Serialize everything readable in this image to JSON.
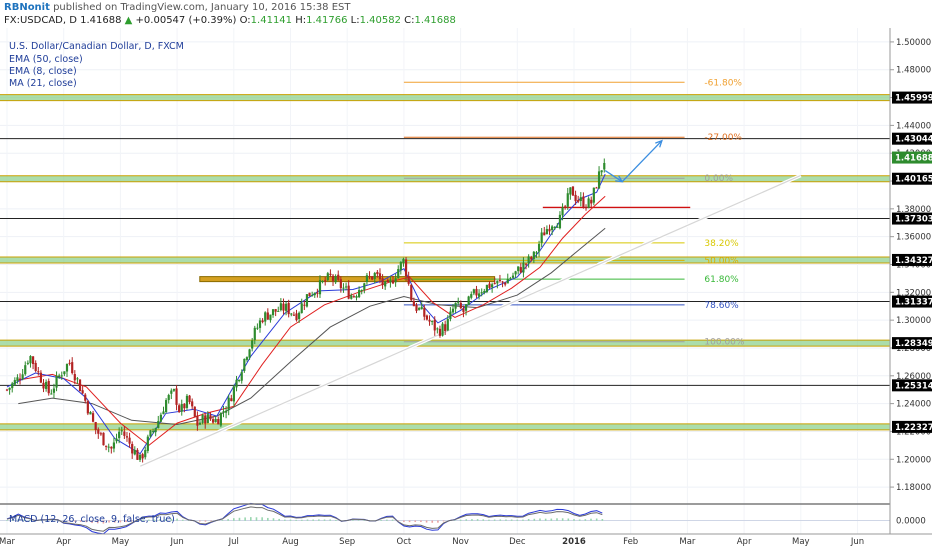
{
  "header": {
    "author": "RBNonit",
    "published_text": "published on TradingView.com, January 10, 2016 15:38 EST",
    "symbol": "FX:USDCAD, D",
    "last": "1.41688",
    "change_arrow": "▲",
    "change": "+0.00547 (+0.39%)",
    "o_label": "O:",
    "o_value": "1.41141",
    "h_label": "H:",
    "h_value": "1.41766",
    "l_label": "L:",
    "l_value": "1.40582",
    "c_label": "C:",
    "c_value": "1.41688"
  },
  "legend": {
    "title": "U.S. Dollar/Canadian Dollar, D, FXCM",
    "ema50": "EMA (50, close)",
    "ema8": "EMA (8, close)",
    "ma21": "MA (21, close)",
    "macd": "MACD (12, 26, close, 9, false, true)"
  },
  "colors": {
    "candle_up": "#2e8b2e",
    "candle_down": "#b22222",
    "ema8": "#2a3ad8",
    "ma21": "#e02020",
    "ema50": "#555555",
    "support_zone": "#8fd18f",
    "support_border": "#c8a000",
    "trendline": "#ffffff",
    "arrow": "#3b8ee0"
  },
  "chart_data": {
    "type": "candlestick",
    "symbol": "FX:USDCAD",
    "timeframe": "D",
    "x_axis": {
      "ticks": [
        "Mar",
        "Apr",
        "May",
        "Jun",
        "Jul",
        "Aug",
        "Sep",
        "Oct",
        "Nov",
        "Dec",
        "2016",
        "Feb",
        "Mar",
        "Apr",
        "May",
        "Jun"
      ],
      "tick_months": [
        0,
        1,
        2,
        3,
        4,
        5,
        6,
        7,
        8,
        9,
        10,
        11,
        12,
        13,
        14,
        15
      ]
    },
    "y_axis": {
      "range": [
        1.17,
        1.51
      ],
      "ticks": [
        "1.18000",
        "1.20000",
        "1.22000",
        "1.24000",
        "1.26000",
        "1.28000",
        "1.30000",
        "1.32000",
        "1.34000",
        "1.36000",
        "1.38000",
        "1.40000",
        "1.42000",
        "1.44000",
        "1.46000",
        "1.48000",
        "1.50000"
      ],
      "tick_values": [
        1.18,
        1.2,
        1.22,
        1.24,
        1.26,
        1.28,
        1.3,
        1.32,
        1.34,
        1.36,
        1.38,
        1.4,
        1.42,
        1.44,
        1.46,
        1.48,
        1.5
      ]
    },
    "key_levels": [
      {
        "label": "1.45999",
        "value": 1.45999,
        "zone": true
      },
      {
        "label": "1.43044",
        "value": 1.43044,
        "zone": false
      },
      {
        "label": "1.41688",
        "value": 1.41688,
        "current": true
      },
      {
        "label": "1.40165",
        "value": 1.40165,
        "zone": true
      },
      {
        "label": "1.37303",
        "value": 1.37303,
        "zone": false
      },
      {
        "label": "1.34327",
        "value": 1.34327,
        "zone": true
      },
      {
        "label": "1.31337",
        "value": 1.31337,
        "zone": false
      },
      {
        "label": "1.28349",
        "value": 1.28349,
        "zone": true
      },
      {
        "label": "1.25314",
        "value": 1.25314,
        "zone": false
      },
      {
        "label": "1.22327",
        "value": 1.22327,
        "zone": true
      }
    ],
    "extra_zone": {
      "value": 1.3295,
      "x_start_month": 3.4,
      "x_end_month": 8.6
    },
    "fibonacci": [
      {
        "label": "-61.80%",
        "value": 1.471,
        "color": "#f0a030"
      },
      {
        "label": "-27.00%",
        "value": 1.4315,
        "color": "#e07020"
      },
      {
        "label": "0.00%",
        "value": 1.402,
        "color": "#a0a0a0"
      },
      {
        "label": "38.20%",
        "value": 1.3555,
        "color": "#d8c800"
      },
      {
        "label": "50.00%",
        "value": 1.343,
        "color": "#d8b000"
      },
      {
        "label": "61.80%",
        "value": 1.3295,
        "color": "#38b838"
      },
      {
        "label": "78.60%",
        "value": 1.311,
        "color": "#3050c0"
      },
      {
        "label": "100.00%",
        "value": 1.2845,
        "color": "#a0a0a0"
      }
    ],
    "fib_x_start_month": 7.0,
    "fib_x_end_month": 11.95,
    "fib_label_month": 12.3,
    "red_level": {
      "value": 1.381,
      "x_start_month": 9.45,
      "x_end_month": 12.05
    },
    "trendline": {
      "start": [
        2.35,
        1.195
      ],
      "end": [
        14.0,
        1.404
      ]
    },
    "projection_arrows": [
      {
        "from": [
          10.55,
          1.4075
        ],
        "to": [
          10.85,
          1.3995
        ]
      },
      {
        "from": [
          10.85,
          1.3995
        ],
        "to": [
          11.55,
          1.429
        ]
      }
    ],
    "price_path": [
      [
        0.0,
        1.25
      ],
      [
        0.2,
        1.258
      ],
      [
        0.4,
        1.275
      ],
      [
        0.55,
        1.262
      ],
      [
        0.75,
        1.247
      ],
      [
        0.95,
        1.262
      ],
      [
        1.1,
        1.27
      ],
      [
        1.25,
        1.256
      ],
      [
        1.4,
        1.24
      ],
      [
        1.55,
        1.222
      ],
      [
        1.7,
        1.214
      ],
      [
        1.85,
        1.207
      ],
      [
        2.0,
        1.222
      ],
      [
        2.15,
        1.212
      ],
      [
        2.35,
        1.199
      ],
      [
        2.5,
        1.215
      ],
      [
        2.65,
        1.226
      ],
      [
        2.8,
        1.242
      ],
      [
        2.95,
        1.248
      ],
      [
        3.05,
        1.234
      ],
      [
        3.2,
        1.243
      ],
      [
        3.35,
        1.225
      ],
      [
        3.5,
        1.23
      ],
      [
        3.7,
        1.228
      ],
      [
        3.9,
        1.24
      ],
      [
        4.1,
        1.262
      ],
      [
        4.3,
        1.285
      ],
      [
        4.5,
        1.302
      ],
      [
        4.7,
        1.306
      ],
      [
        4.9,
        1.309
      ],
      [
        5.1,
        1.304
      ],
      [
        5.3,
        1.318
      ],
      [
        5.5,
        1.324
      ],
      [
        5.7,
        1.331
      ],
      [
        5.9,
        1.324
      ],
      [
        6.1,
        1.317
      ],
      [
        6.3,
        1.328
      ],
      [
        6.5,
        1.333
      ],
      [
        6.7,
        1.322
      ],
      [
        6.9,
        1.337
      ],
      [
        7.0,
        1.343
      ],
      [
        7.15,
        1.312
      ],
      [
        7.3,
        1.306
      ],
      [
        7.45,
        1.299
      ],
      [
        7.6,
        1.292
      ],
      [
        7.75,
        1.296
      ],
      [
        7.9,
        1.311
      ],
      [
        8.05,
        1.306
      ],
      [
        8.2,
        1.317
      ],
      [
        8.35,
        1.322
      ],
      [
        8.55,
        1.326
      ],
      [
        8.75,
        1.327
      ],
      [
        8.95,
        1.333
      ],
      [
        9.1,
        1.339
      ],
      [
        9.3,
        1.346
      ],
      [
        9.45,
        1.362
      ],
      [
        9.6,
        1.37
      ],
      [
        9.75,
        1.372
      ],
      [
        9.85,
        1.382
      ],
      [
        9.95,
        1.394
      ],
      [
        10.05,
        1.387
      ],
      [
        10.2,
        1.384
      ],
      [
        10.3,
        1.384
      ],
      [
        10.4,
        1.399
      ],
      [
        10.5,
        1.411
      ],
      [
        10.55,
        1.4169
      ]
    ],
    "ema8": [
      [
        0.0,
        1.252
      ],
      [
        0.5,
        1.262
      ],
      [
        1.0,
        1.258
      ],
      [
        1.4,
        1.244
      ],
      [
        1.9,
        1.215
      ],
      [
        2.35,
        1.204
      ],
      [
        2.8,
        1.233
      ],
      [
        3.3,
        1.236
      ],
      [
        3.7,
        1.231
      ],
      [
        4.3,
        1.274
      ],
      [
        4.9,
        1.305
      ],
      [
        5.5,
        1.321
      ],
      [
        6.1,
        1.322
      ],
      [
        6.6,
        1.328
      ],
      [
        7.0,
        1.337
      ],
      [
        7.3,
        1.312
      ],
      [
        7.6,
        1.298
      ],
      [
        8.0,
        1.307
      ],
      [
        8.5,
        1.322
      ],
      [
        9.0,
        1.331
      ],
      [
        9.4,
        1.35
      ],
      [
        9.8,
        1.374
      ],
      [
        10.1,
        1.387
      ],
      [
        10.4,
        1.392
      ],
      [
        10.55,
        1.405
      ]
    ],
    "ma21": [
      [
        0.2,
        1.257
      ],
      [
        0.8,
        1.261
      ],
      [
        1.4,
        1.252
      ],
      [
        2.0,
        1.226
      ],
      [
        2.5,
        1.21
      ],
      [
        3.0,
        1.226
      ],
      [
        3.5,
        1.233
      ],
      [
        4.0,
        1.238
      ],
      [
        4.5,
        1.268
      ],
      [
        5.0,
        1.295
      ],
      [
        5.6,
        1.311
      ],
      [
        6.2,
        1.32
      ],
      [
        6.8,
        1.328
      ],
      [
        7.1,
        1.331
      ],
      [
        7.5,
        1.313
      ],
      [
        7.9,
        1.302
      ],
      [
        8.4,
        1.311
      ],
      [
        8.9,
        1.323
      ],
      [
        9.4,
        1.338
      ],
      [
        9.8,
        1.359
      ],
      [
        10.2,
        1.376
      ],
      [
        10.55,
        1.389
      ]
    ],
    "ema50": [
      [
        0.2,
        1.24
      ],
      [
        0.8,
        1.244
      ],
      [
        1.5,
        1.24
      ],
      [
        2.2,
        1.228
      ],
      [
        3.0,
        1.225
      ],
      [
        3.7,
        1.231
      ],
      [
        4.3,
        1.244
      ],
      [
        5.0,
        1.27
      ],
      [
        5.7,
        1.295
      ],
      [
        6.4,
        1.31
      ],
      [
        7.0,
        1.317
      ],
      [
        7.6,
        1.311
      ],
      [
        8.3,
        1.309
      ],
      [
        9.0,
        1.318
      ],
      [
        9.6,
        1.334
      ],
      [
        10.1,
        1.351
      ],
      [
        10.55,
        1.366
      ]
    ],
    "macd": {
      "label": "MACD (12, 26, close, 9, false, true)",
      "tick": "0.0000",
      "range": [
        -0.02,
        0.02
      ]
    }
  }
}
